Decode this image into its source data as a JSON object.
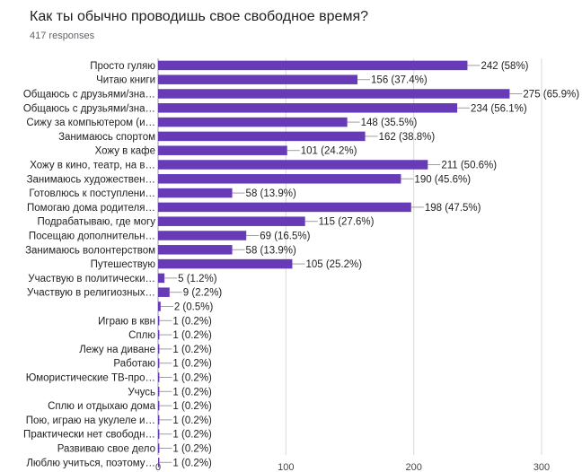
{
  "title": "Как ты обычно проводишь свое свободное время?",
  "subtitle": "417 responses",
  "chart_data": {
    "type": "bar",
    "orientation": "horizontal",
    "title": "Как ты обычно проводишь свое свободное время?",
    "xlim": [
      0,
      300
    ],
    "xticks": [
      0,
      100,
      200,
      300
    ],
    "grid": true,
    "bar_color": "#673ab7",
    "categories": [
      "Просто гуляю",
      "Читаю книги",
      "Общаюсь с друзьями/зна…",
      "Общаюсь с друзьями/зна…",
      "Сижу за компьютером (и…",
      "Занимаюсь спортом",
      "Хожу в кафе",
      "Хожу в кино, театр, на в…",
      "Занимаюсь художествен…",
      "Готовлюсь к поступлени…",
      "Помогаю дома родителя…",
      "Подрабатываю, где могу",
      "Посещаю дополнительн…",
      "Занимаюсь волонтерством",
      "Путешествую",
      "Участвую в политически…",
      "Участвую в религиозных…",
      "",
      "Играю в квн",
      "Сплю",
      "Лежу на диване",
      "Работаю",
      "Юмористические ТВ-про…",
      "Учусь",
      "Сплю и отдыхаю дома",
      "Пою, играю на укулеле и…",
      "Практически нет свободн…",
      "Развиваю свое дело",
      "Люблю учиться, поэтому…"
    ],
    "values": [
      242,
      156,
      275,
      234,
      148,
      162,
      101,
      211,
      190,
      58,
      198,
      115,
      69,
      58,
      105,
      5,
      9,
      2,
      1,
      1,
      1,
      1,
      1,
      1,
      1,
      1,
      1,
      1,
      1
    ],
    "labels": [
      "242 (58%)",
      "156 (37.4%)",
      "275 (65.9%)",
      "234 (56.1%)",
      "148 (35.5%)",
      "162 (38.8%)",
      "101 (24.2%)",
      "211 (50.6%)",
      "190 (45.6%)",
      "58 (13.9%)",
      "198 (47.5%)",
      "115 (27.6%)",
      "69 (16.5%)",
      "58 (13.9%)",
      "105 (25.2%)",
      "5 (1.2%)",
      "9 (2.2%)",
      "2 (0.5%)",
      "1 (0.2%)",
      "1 (0.2%)",
      "1 (0.2%)",
      "1 (0.2%)",
      "1 (0.2%)",
      "1 (0.2%)",
      "1 (0.2%)",
      "1 (0.2%)",
      "1 (0.2%)",
      "1 (0.2%)",
      "1 (0.2%)"
    ]
  }
}
